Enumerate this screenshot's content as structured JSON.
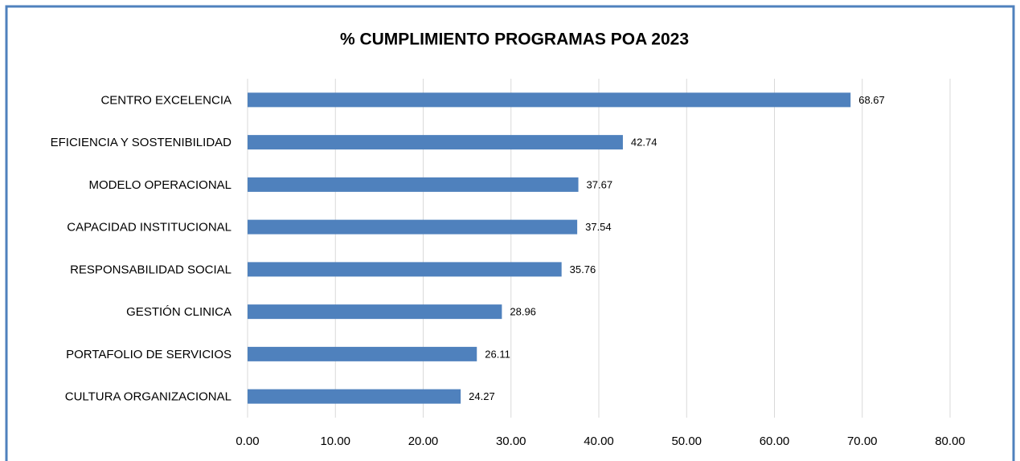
{
  "chart_data": {
    "type": "bar",
    "orientation": "horizontal",
    "title": "% CUMPLIMIENTO PROGRAMAS POA 2023",
    "categories": [
      "CENTRO EXCELENCIA",
      "EFICIENCIA Y SOSTENIBILIDAD",
      "MODELO OPERACIONAL",
      "CAPACIDAD INSTITUCIONAL",
      "RESPONSABILIDAD SOCIAL",
      "GESTIÓN CLINICA",
      "PORTAFOLIO DE SERVICIOS",
      "CULTURA ORGANIZACIONAL"
    ],
    "values": [
      68.67,
      42.74,
      37.67,
      37.54,
      35.76,
      28.96,
      26.11,
      24.27
    ],
    "color": "#4f81bd",
    "xlim": [
      0,
      80
    ],
    "xticks": [
      {
        "value": 0,
        "label": "0.00"
      },
      {
        "value": 10,
        "label": "10.00"
      },
      {
        "value": 20,
        "label": "20.00"
      },
      {
        "value": 30,
        "label": "30.00"
      },
      {
        "value": 40,
        "label": "40.00"
      },
      {
        "value": 50,
        "label": "50.00"
      },
      {
        "value": 60,
        "label": "60.00"
      },
      {
        "value": 70,
        "label": "70.00"
      },
      {
        "value": 80,
        "label": "80.00"
      }
    ],
    "grid": true
  }
}
